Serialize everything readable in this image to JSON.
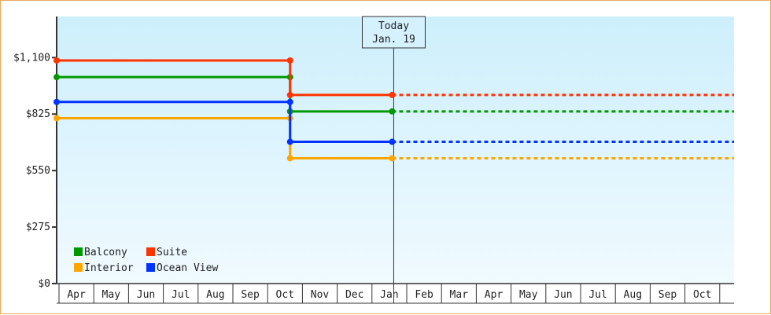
{
  "chart_data": {
    "type": "line",
    "step": true,
    "title": "",
    "xlabel": "",
    "ylabel": "",
    "ylim": [
      0,
      1300
    ],
    "y_ticks": [
      "$0",
      "$275",
      "$550",
      "$825",
      "$1,100"
    ],
    "y_tick_values": [
      0,
      275,
      550,
      825,
      1100
    ],
    "x_ticks": [
      "Apr",
      "May",
      "Jun",
      "Jul",
      "Aug",
      "Sep",
      "Oct",
      "Nov",
      "Dec",
      "Jan",
      "Feb",
      "Mar",
      "Apr",
      "May",
      "Jun",
      "Jul",
      "Aug",
      "Sep",
      "Oct"
    ],
    "grid": false,
    "legend_position": "bottom-left",
    "today_marker": {
      "line1": "Today",
      "line2": "Jan. 19",
      "date": "Jan 19"
    },
    "series": [
      {
        "name": "Balcony",
        "color": "#009900",
        "points": [
          {
            "date": "Apr 1",
            "value": 1005
          },
          {
            "date": "Oct 21",
            "value": 1005
          },
          {
            "date": "Oct 21",
            "value": 838
          },
          {
            "date": "Jan 19",
            "value": 838
          }
        ],
        "projected": 838
      },
      {
        "name": "Suite",
        "color": "#ff3300",
        "points": [
          {
            "date": "Apr 1",
            "value": 1086
          },
          {
            "date": "Oct 21",
            "value": 1086
          },
          {
            "date": "Oct 21",
            "value": 918
          },
          {
            "date": "Jan 19",
            "value": 918
          }
        ],
        "projected": 918
      },
      {
        "name": "Interior",
        "color": "#ffa500",
        "points": [
          {
            "date": "Apr 1",
            "value": 805
          },
          {
            "date": "Oct 21",
            "value": 805
          },
          {
            "date": "Oct 21",
            "value": 610
          },
          {
            "date": "Jan 19",
            "value": 610
          }
        ],
        "projected": 610
      },
      {
        "name": "Ocean View",
        "color": "#0033ff",
        "points": [
          {
            "date": "Apr 1",
            "value": 884
          },
          {
            "date": "Oct 21",
            "value": 884
          },
          {
            "date": "Oct 21",
            "value": 690
          },
          {
            "date": "Jan 19",
            "value": 690
          }
        ],
        "projected": 690
      }
    ]
  }
}
